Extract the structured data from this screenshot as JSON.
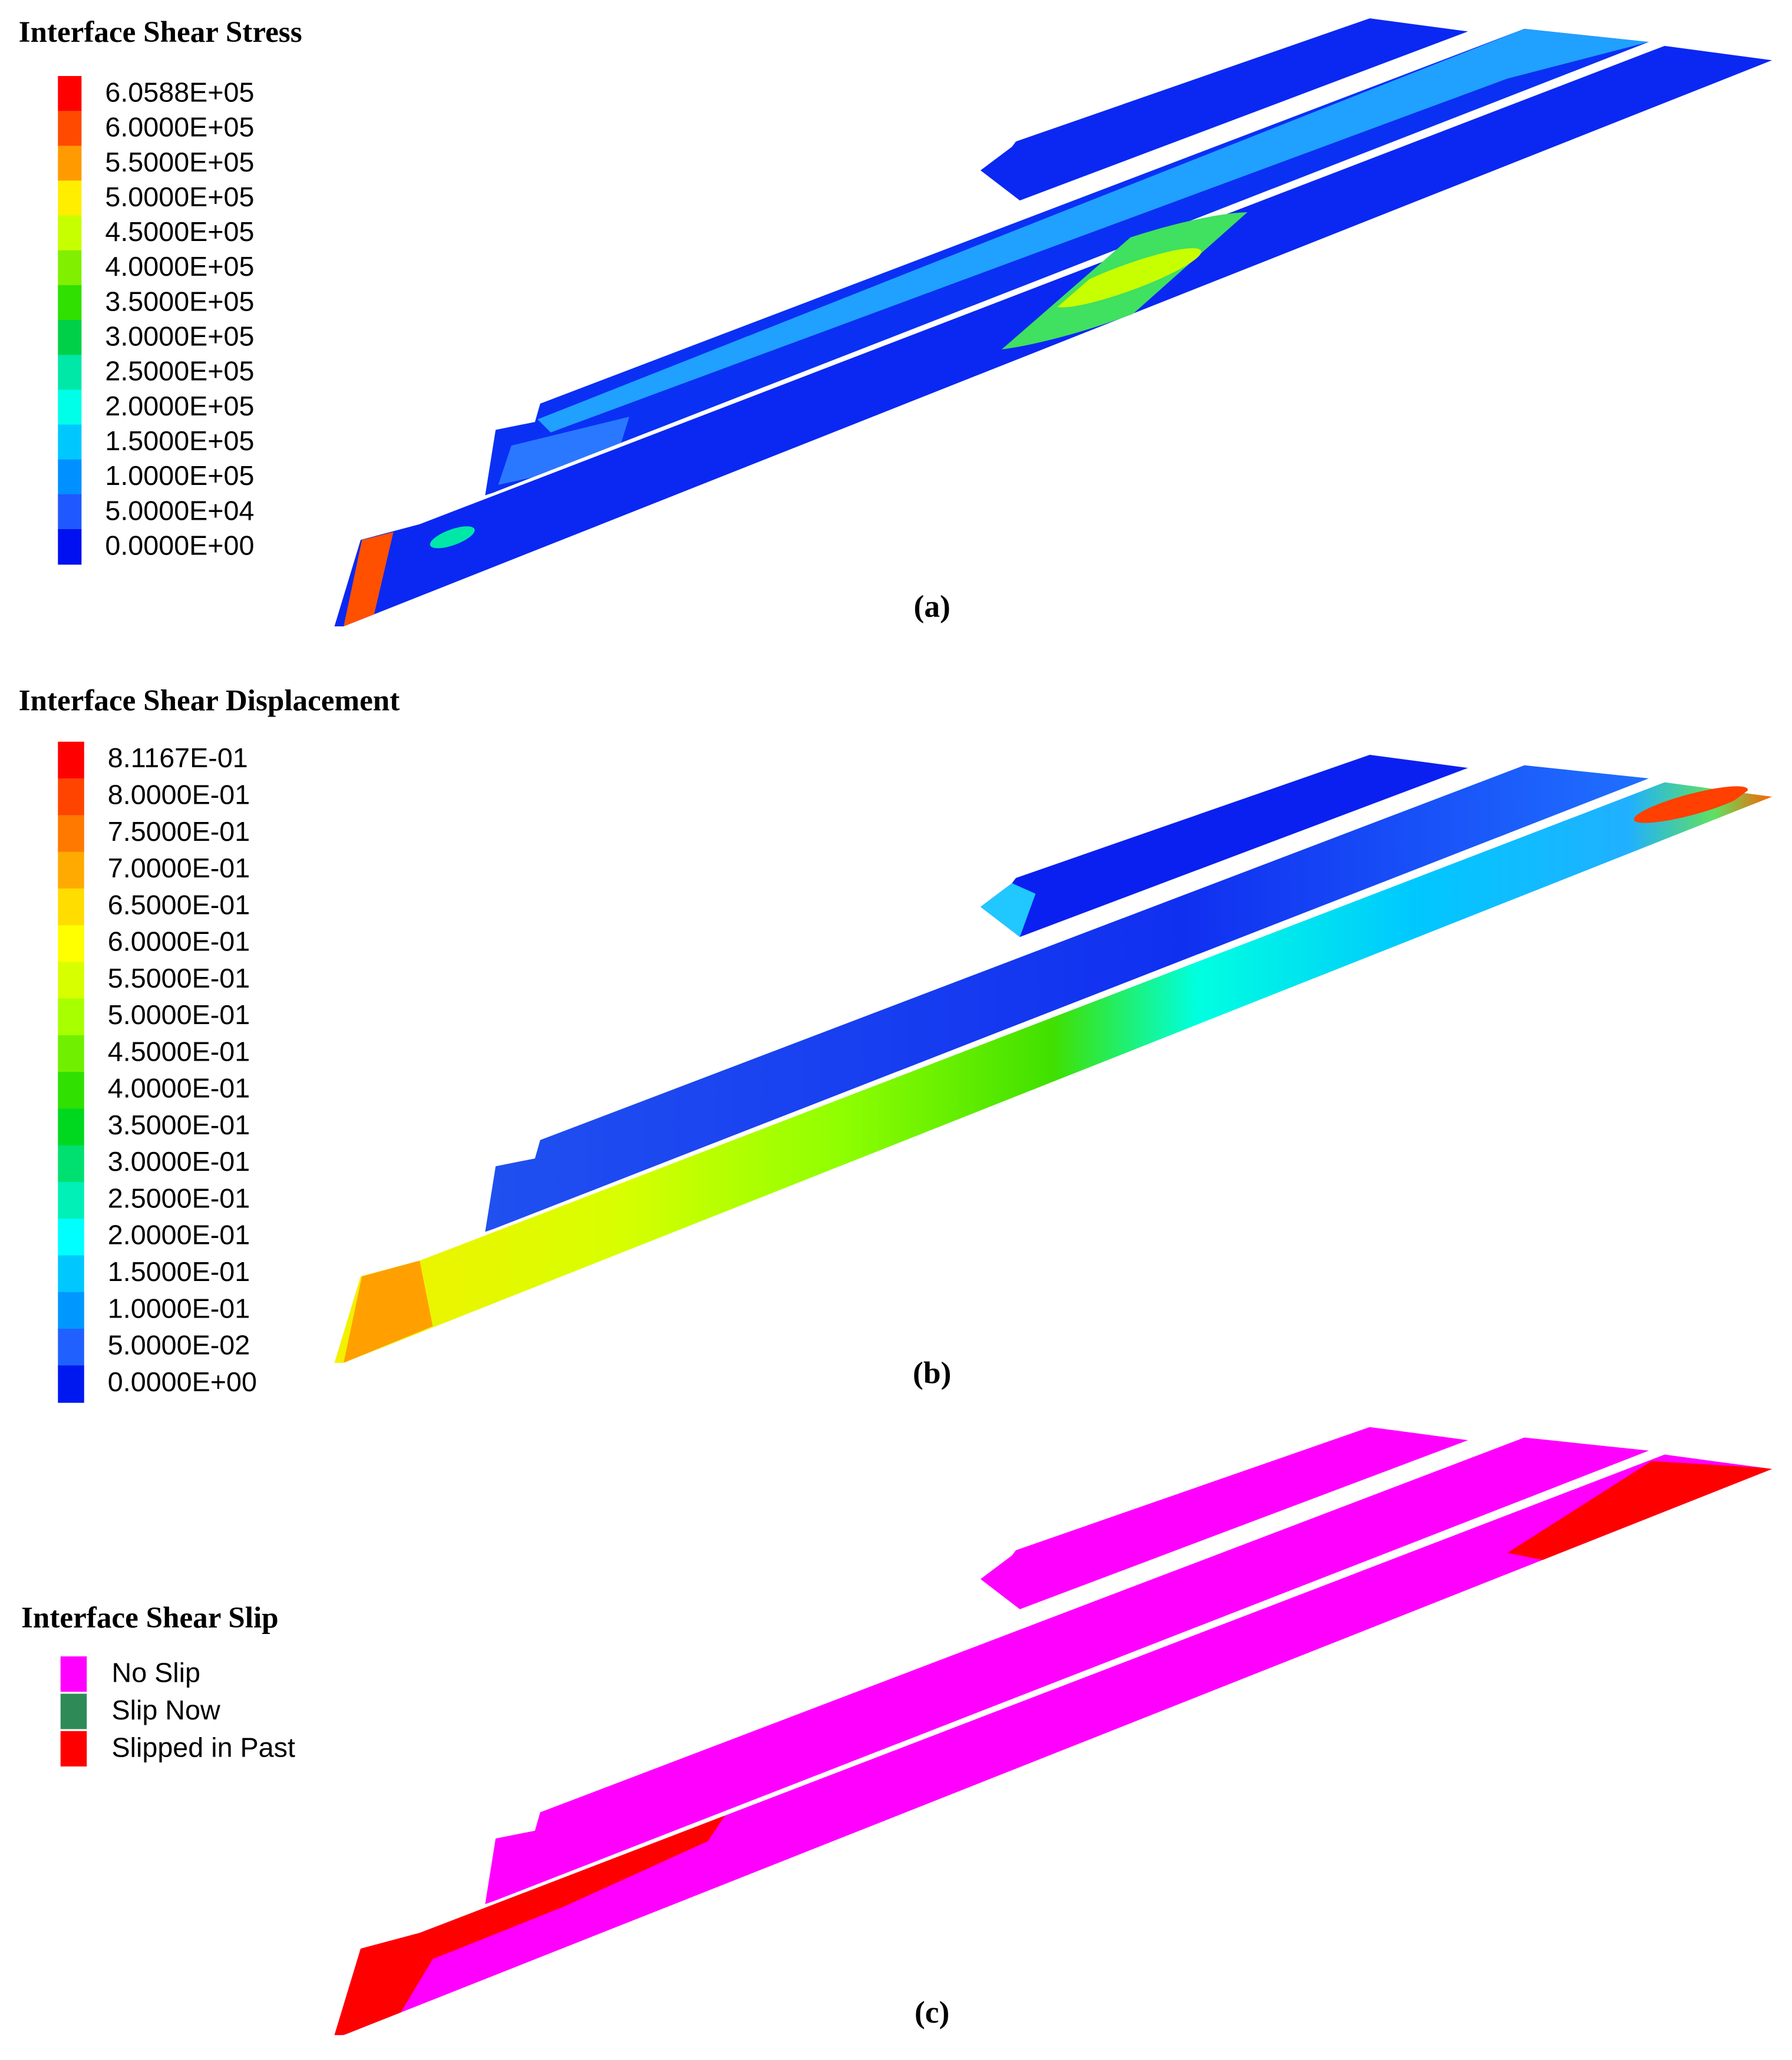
{
  "panels": [
    {
      "legend_title": "Interface Shear Stress",
      "caption": "(a)",
      "legend": [
        {
          "label": "6.0588E+05",
          "color": "#ff0000"
        },
        {
          "label": "6.0000E+05",
          "color": "#ff4a00"
        },
        {
          "label": "5.5000E+05",
          "color": "#ff9a00"
        },
        {
          "label": "5.0000E+05",
          "color": "#ffee00"
        },
        {
          "label": "4.5000E+05",
          "color": "#c8ff00"
        },
        {
          "label": "4.0000E+05",
          "color": "#80f000"
        },
        {
          "label": "3.5000E+05",
          "color": "#30e000"
        },
        {
          "label": "3.0000E+05",
          "color": "#00d048"
        },
        {
          "label": "2.5000E+05",
          "color": "#00e8a8"
        },
        {
          "label": "2.0000E+05",
          "color": "#00ffe8"
        },
        {
          "label": "1.5000E+05",
          "color": "#00c8ff"
        },
        {
          "label": "1.0000E+05",
          "color": "#0090ff"
        },
        {
          "label": "5.0000E+04",
          "color": "#2058ff"
        },
        {
          "label": "0.0000E+00",
          "color": "#0010f0"
        }
      ]
    },
    {
      "legend_title": "Interface Shear Displacement",
      "caption": "(b)",
      "legend": [
        {
          "label": "8.1167E-01",
          "color": "#ff0000"
        },
        {
          "label": "8.0000E-01",
          "color": "#ff4400"
        },
        {
          "label": "7.5000E-01",
          "color": "#ff7800"
        },
        {
          "label": "7.0000E-01",
          "color": "#ffaa00"
        },
        {
          "label": "6.5000E-01",
          "color": "#ffdd00"
        },
        {
          "label": "6.0000E-01",
          "color": "#ffff00"
        },
        {
          "label": "5.5000E-01",
          "color": "#d8ff00"
        },
        {
          "label": "5.0000E-01",
          "color": "#a8ff00"
        },
        {
          "label": "4.5000E-01",
          "color": "#70f000"
        },
        {
          "label": "4.0000E-01",
          "color": "#30e000"
        },
        {
          "label": "3.5000E-01",
          "color": "#00d820"
        },
        {
          "label": "3.0000E-01",
          "color": "#00e070"
        },
        {
          "label": "2.5000E-01",
          "color": "#00f0b8"
        },
        {
          "label": "2.0000E-01",
          "color": "#00ffff"
        },
        {
          "label": "1.5000E-01",
          "color": "#00c8ff"
        },
        {
          "label": "1.0000E-01",
          "color": "#0098ff"
        },
        {
          "label": "5.0000E-02",
          "color": "#2060ff"
        },
        {
          "label": "0.0000E+00",
          "color": "#0018f0"
        }
      ]
    },
    {
      "legend_title": "Interface Shear Slip",
      "caption": "(c)",
      "legend": [
        {
          "label": "No Slip",
          "color": "#ff00ff"
        },
        {
          "label": "Slip Now",
          "color": "#2e8b57"
        },
        {
          "label": "Slipped in Past",
          "color": "#ff0000"
        }
      ]
    }
  ]
}
